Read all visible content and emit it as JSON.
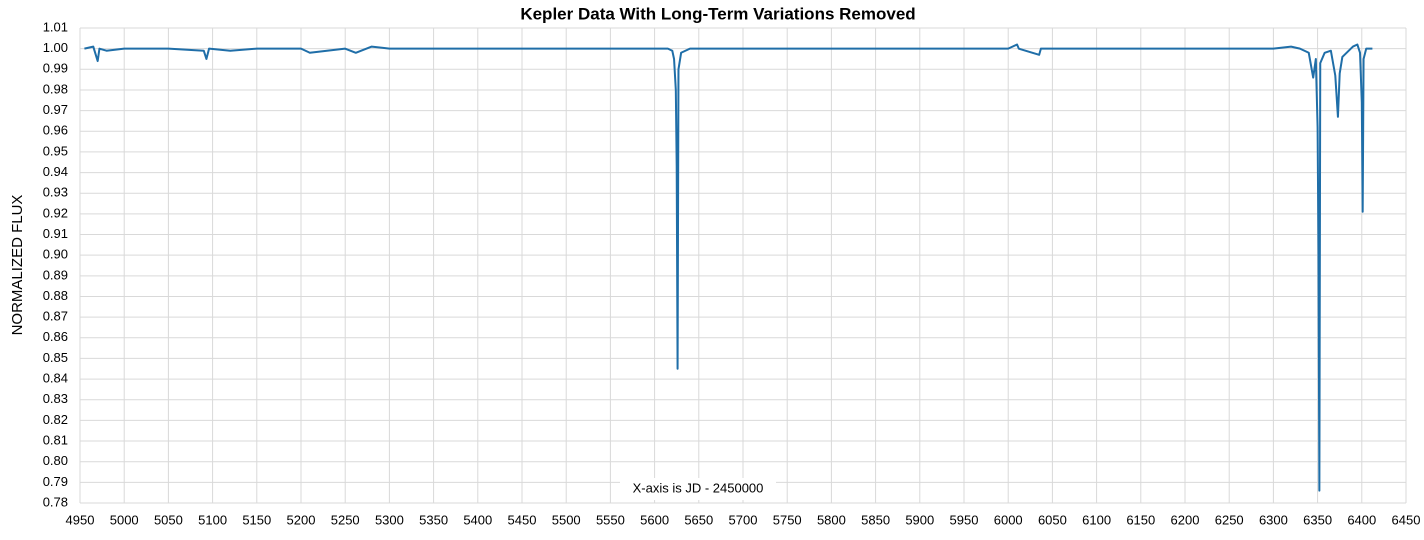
{
  "chart_data": {
    "type": "line",
    "title": "Kepler Data With Long-Term Variations Removed",
    "y_label": "NORMALIZED FLUX",
    "annotation": "X-axis is JD - 2450000",
    "x": [
      4955,
      4965,
      4970,
      4972,
      4980,
      5000,
      5050,
      5090,
      5093,
      5096,
      5120,
      5150,
      5200,
      5210,
      5250,
      5262,
      5280,
      5300,
      5350,
      5400,
      5450,
      5500,
      5550,
      5600,
      5615,
      5620,
      5622,
      5624,
      5625,
      5626,
      5627,
      5630,
      5640,
      5700,
      5750,
      5800,
      5850,
      5900,
      5950,
      6000,
      6010,
      6012,
      6035,
      6037,
      6050,
      6100,
      6150,
      6200,
      6250,
      6300,
      6320,
      6330,
      6340,
      6345,
      6348,
      6350,
      6351,
      6352,
      6353,
      6358,
      6365,
      6370,
      6373,
      6375,
      6378,
      6390,
      6395,
      6398,
      6400,
      6401,
      6402,
      6405,
      6412
    ],
    "values": [
      1.0,
      1.001,
      0.994,
      1.0,
      0.999,
      1.0,
      1.0,
      0.999,
      0.995,
      1.0,
      0.999,
      1.0,
      1.0,
      0.998,
      1.0,
      0.998,
      1.001,
      1.0,
      1.0,
      1.0,
      1.0,
      1.0,
      1.0,
      1.0,
      1.0,
      0.999,
      0.995,
      0.98,
      0.943,
      0.845,
      0.99,
      0.998,
      1.0,
      1.0,
      1.0,
      1.0,
      1.0,
      1.0,
      1.0,
      1.0,
      1.002,
      1.0,
      0.997,
      1.0,
      1.0,
      1.0,
      1.0,
      1.0,
      1.0,
      1.0,
      1.001,
      1.0,
      0.998,
      0.986,
      0.995,
      0.962,
      0.902,
      0.786,
      0.993,
      0.998,
      0.999,
      0.987,
      0.967,
      0.988,
      0.996,
      1.001,
      1.002,
      0.998,
      0.974,
      0.921,
      0.995,
      1.0,
      1.0
    ],
    "color": "#1f6ea8",
    "xlim": [
      4950,
      6450
    ],
    "xticks": [
      4950,
      5000,
      5050,
      5100,
      5150,
      5200,
      5250,
      5300,
      5350,
      5400,
      5450,
      5500,
      5550,
      5600,
      5650,
      5700,
      5750,
      5800,
      5850,
      5900,
      5950,
      6000,
      6050,
      6100,
      6150,
      6200,
      6250,
      6300,
      6350,
      6400,
      6450
    ],
    "ylim": [
      0.78,
      1.01
    ],
    "yticks": [
      0.78,
      0.79,
      {
        "value": 0.8,
        "label": "0.80"
      },
      0.81,
      0.82,
      0.83,
      0.84,
      0.85,
      0.86,
      0.87,
      0.88,
      0.89,
      {
        "value": 0.9,
        "label": "0.90"
      },
      0.91,
      0.92,
      0.93,
      0.94,
      0.95,
      0.96,
      0.97,
      0.98,
      0.99,
      {
        "value": 1.0,
        "label": "1.00"
      },
      1.01
    ],
    "grid": true
  }
}
